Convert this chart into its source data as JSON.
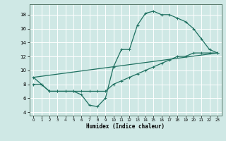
{
  "xlabel": "Humidex (Indice chaleur)",
  "bg_color": "#cfe8e5",
  "line_color": "#1e7060",
  "grid_color": "#ffffff",
  "xlim": [
    -0.5,
    23.5
  ],
  "ylim": [
    3.5,
    19.5
  ],
  "yticks": [
    4,
    6,
    8,
    10,
    12,
    14,
    16,
    18
  ],
  "xticks": [
    0,
    1,
    2,
    3,
    4,
    5,
    6,
    7,
    8,
    9,
    10,
    11,
    12,
    13,
    14,
    15,
    16,
    17,
    18,
    19,
    20,
    21,
    22,
    23
  ],
  "series": [
    {
      "x": [
        0,
        1,
        2,
        3,
        4,
        5,
        6,
        7,
        8,
        9,
        10,
        11,
        12,
        13,
        14,
        15,
        16,
        17,
        18,
        19,
        20,
        21,
        22,
        23
      ],
      "y": [
        9,
        8,
        7,
        7,
        7,
        7,
        6.5,
        5,
        4.8,
        6,
        10.5,
        13,
        13,
        16.5,
        18.2,
        18.5,
        18,
        18,
        17.5,
        17,
        16,
        14.5,
        13,
        12.5
      ]
    },
    {
      "x": [
        0,
        23
      ],
      "y": [
        9,
        12.5
      ]
    },
    {
      "x": [
        0,
        1,
        2,
        3,
        4,
        5,
        6,
        7,
        8,
        9,
        10,
        11,
        12,
        13,
        14,
        15,
        16,
        17,
        18,
        19,
        20,
        21,
        22,
        23
      ],
      "y": [
        8,
        8,
        7,
        7,
        7,
        7,
        7,
        7,
        7,
        7,
        8,
        8.5,
        9,
        9.5,
        10,
        10.5,
        11,
        11.5,
        12,
        12,
        12.5,
        12.5,
        12.5,
        12.5
      ]
    }
  ],
  "markers": true,
  "marker_style": "+",
  "marker_size": 3,
  "linewidth": 0.9
}
